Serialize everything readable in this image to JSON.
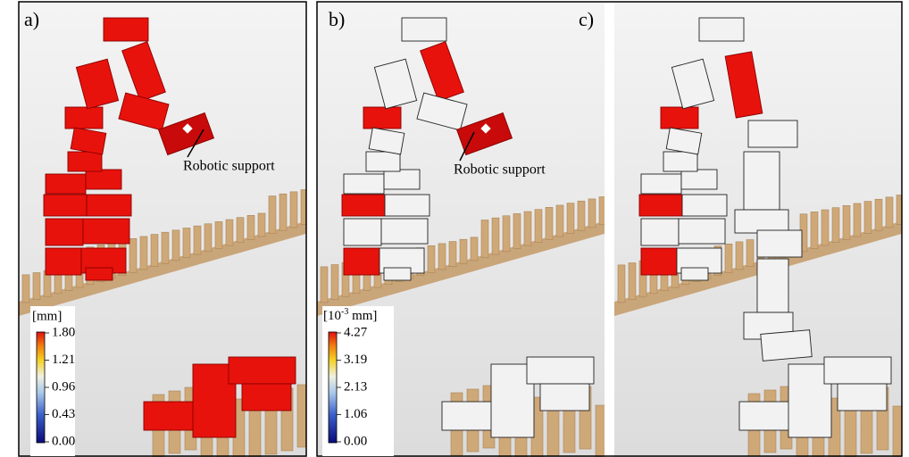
{
  "panels": [
    {
      "label": "a)",
      "annotation": "Robotic support",
      "colorbar": {
        "unit": "[mm]",
        "ticks": [
          "1.80",
          "1.21",
          "0.96",
          "0.43",
          "0.00"
        ]
      }
    },
    {
      "label": "b)",
      "annotation": "Robotic support",
      "colorbar": {
        "unit_parts": [
          "[10",
          "-3",
          " mm]"
        ],
        "ticks": [
          "4.27",
          "3.19",
          "2.13",
          "1.06",
          "0.00"
        ]
      }
    },
    {
      "label": "c)"
    }
  ]
}
